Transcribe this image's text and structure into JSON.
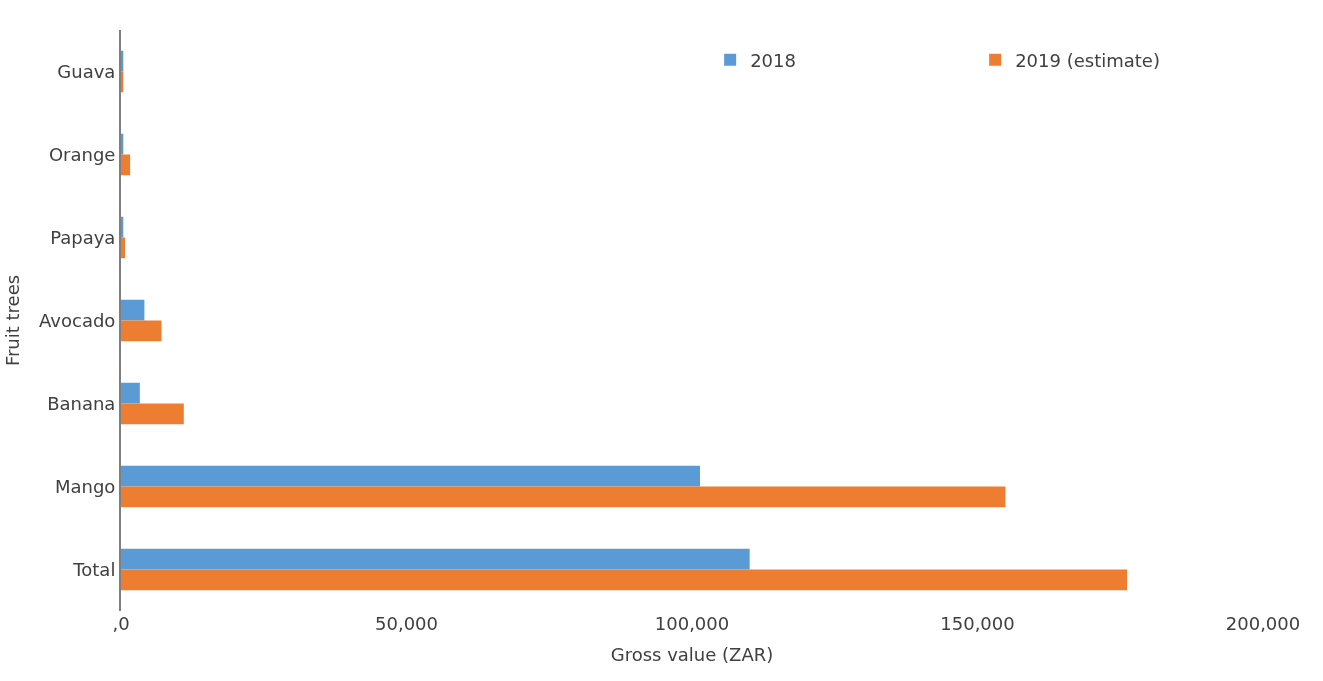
{
  "chart_data": {
    "type": "bar",
    "orientation": "horizontal",
    "xlabel": "Gross value (ZAR)",
    "ylabel": "Fruit trees",
    "categories": [
      "Guava",
      "Orange",
      "Papaya",
      "Avocado",
      "Banana",
      "Mango",
      "Total"
    ],
    "series": [
      {
        "name": "2018",
        "color": "#5b9bd5",
        "values": [
          400,
          400,
          400,
          4100,
          3300,
          101400,
          110100
        ]
      },
      {
        "name": "2019 (estimate)",
        "color": "#ed7d31",
        "values": [
          400,
          1600,
          700,
          7100,
          11000,
          154900,
          176200
        ]
      }
    ],
    "xlim": [
      0,
      200000
    ],
    "xticks": [
      {
        "value": 0,
        "label": ",0"
      },
      {
        "value": 50000,
        "label": "50,000"
      },
      {
        "value": 100000,
        "label": "100,000"
      },
      {
        "value": 150000,
        "label": "150,000"
      },
      {
        "value": 200000,
        "label": "200,000"
      }
    ],
    "legend": "top right"
  }
}
